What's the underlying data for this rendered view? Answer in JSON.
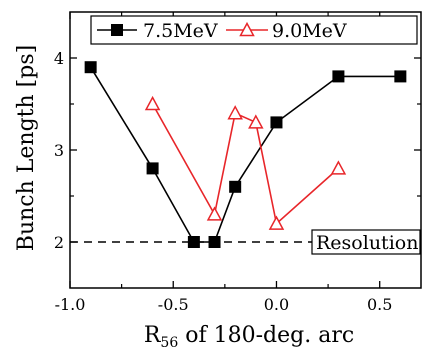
{
  "chart_data": {
    "type": "line",
    "xlabel": "R",
    "xlabel_subscript": "56",
    "xlabel_suffix": " of 180-deg. arc",
    "ylabel": "Bunch Length [ps]",
    "xlim": [
      -1.0,
      0.7
    ],
    "ylim": [
      1.5,
      4.5
    ],
    "x_ticks": [
      -1.0,
      -0.5,
      0.0,
      0.5
    ],
    "x_tick_labels": [
      "-1.0",
      "-0.5",
      "0.0",
      "0.5"
    ],
    "y_ticks": [
      2,
      3,
      4
    ],
    "y_tick_labels": [
      "2",
      "3",
      "4"
    ],
    "legend_position": "top-right",
    "series": [
      {
        "name": "7.5MeV",
        "color": "#000000",
        "marker": "filled-square",
        "x": [
          -0.9,
          -0.6,
          -0.4,
          -0.3,
          -0.2,
          0.0,
          0.3,
          0.6
        ],
        "y": [
          3.9,
          2.8,
          2.0,
          2.0,
          2.6,
          3.3,
          3.8,
          3.8
        ]
      },
      {
        "name": "9.0MeV",
        "color": "#e8262a",
        "marker": "open-triangle",
        "x": [
          -0.6,
          -0.3,
          -0.2,
          -0.1,
          0.0,
          0.3
        ],
        "y": [
          3.5,
          2.3,
          3.4,
          3.3,
          2.2,
          2.8
        ]
      }
    ],
    "reference_line": {
      "y": 2.0,
      "style": "dashed",
      "label": "Resolution"
    }
  }
}
